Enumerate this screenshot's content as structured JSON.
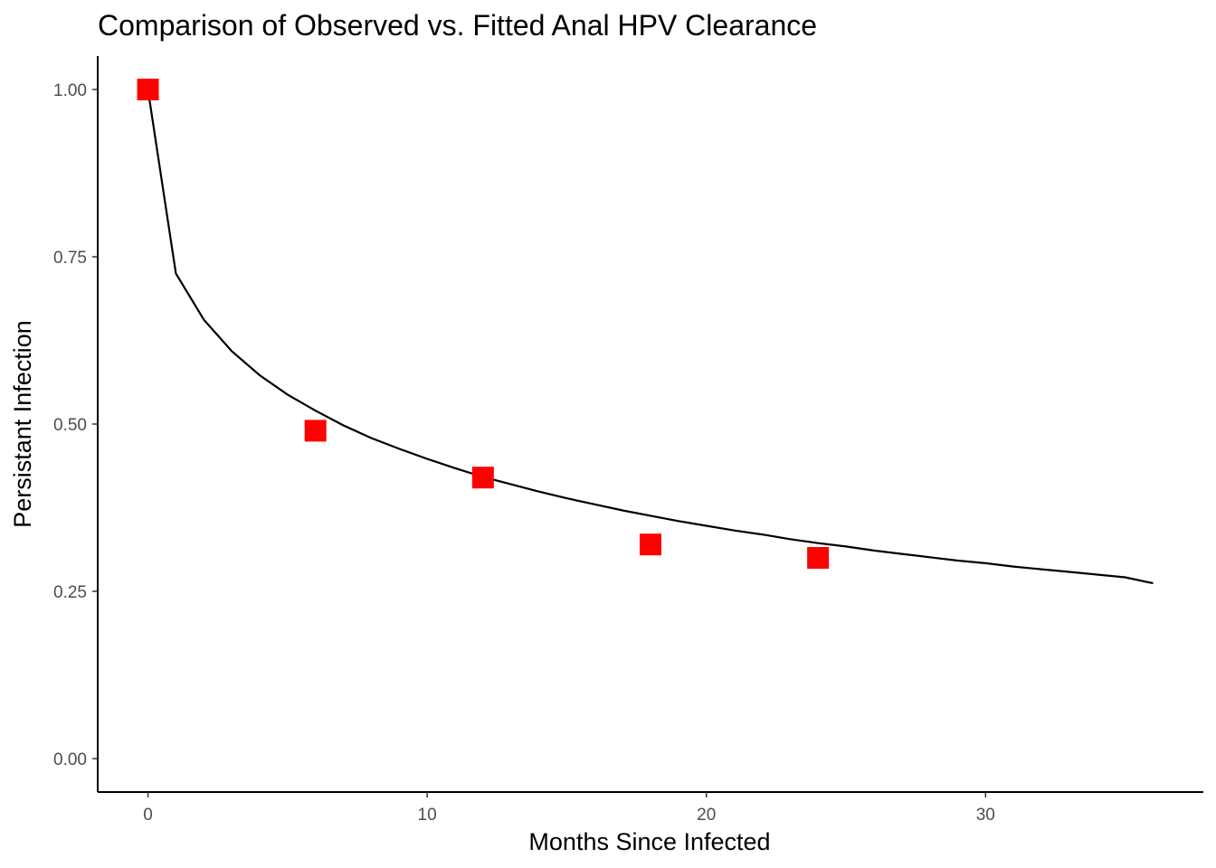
{
  "chart_data": {
    "type": "scatter",
    "title": "Comparison of Observed vs. Fitted Anal HPV Clearance",
    "xlabel": "Months Since Infected",
    "ylabel": "Persistant Infection",
    "xlim": [
      -1.8,
      37.8
    ],
    "ylim": [
      -0.05,
      1.05
    ],
    "x_ticks": [
      0,
      10,
      20,
      30
    ],
    "x_tick_labels": [
      "0",
      "10",
      "20",
      "30"
    ],
    "y_ticks": [
      0,
      0.25,
      0.5,
      0.75,
      1.0
    ],
    "y_tick_labels": [
      "0.00",
      "0.25",
      "0.50",
      "0.75",
      "1.00"
    ],
    "grid": false,
    "legend": "none",
    "observed": {
      "marker": "square",
      "color": "#ff0000",
      "x": [
        0,
        6,
        12,
        18,
        24
      ],
      "y": [
        1.0,
        0.49,
        0.42,
        0.32,
        0.3
      ]
    },
    "fitted": {
      "line_color": "#000000",
      "x": [
        0,
        1,
        2,
        3,
        4,
        5,
        6,
        7,
        8,
        9,
        10,
        11,
        12,
        13,
        14,
        15,
        16,
        17,
        18,
        19,
        20,
        21,
        22,
        23,
        24,
        25,
        26,
        27,
        28,
        29,
        30,
        31,
        32,
        33,
        34,
        35,
        36
      ],
      "y": [
        1.0,
        0.725,
        0.656,
        0.609,
        0.573,
        0.544,
        0.52,
        0.498,
        0.479,
        0.463,
        0.448,
        0.434,
        0.421,
        0.41,
        0.399,
        0.389,
        0.38,
        0.371,
        0.363,
        0.355,
        0.348,
        0.341,
        0.335,
        0.328,
        0.322,
        0.317,
        0.311,
        0.306,
        0.301,
        0.296,
        0.292,
        0.287,
        0.283,
        0.279,
        0.275,
        0.271,
        0.262
      ]
    }
  }
}
